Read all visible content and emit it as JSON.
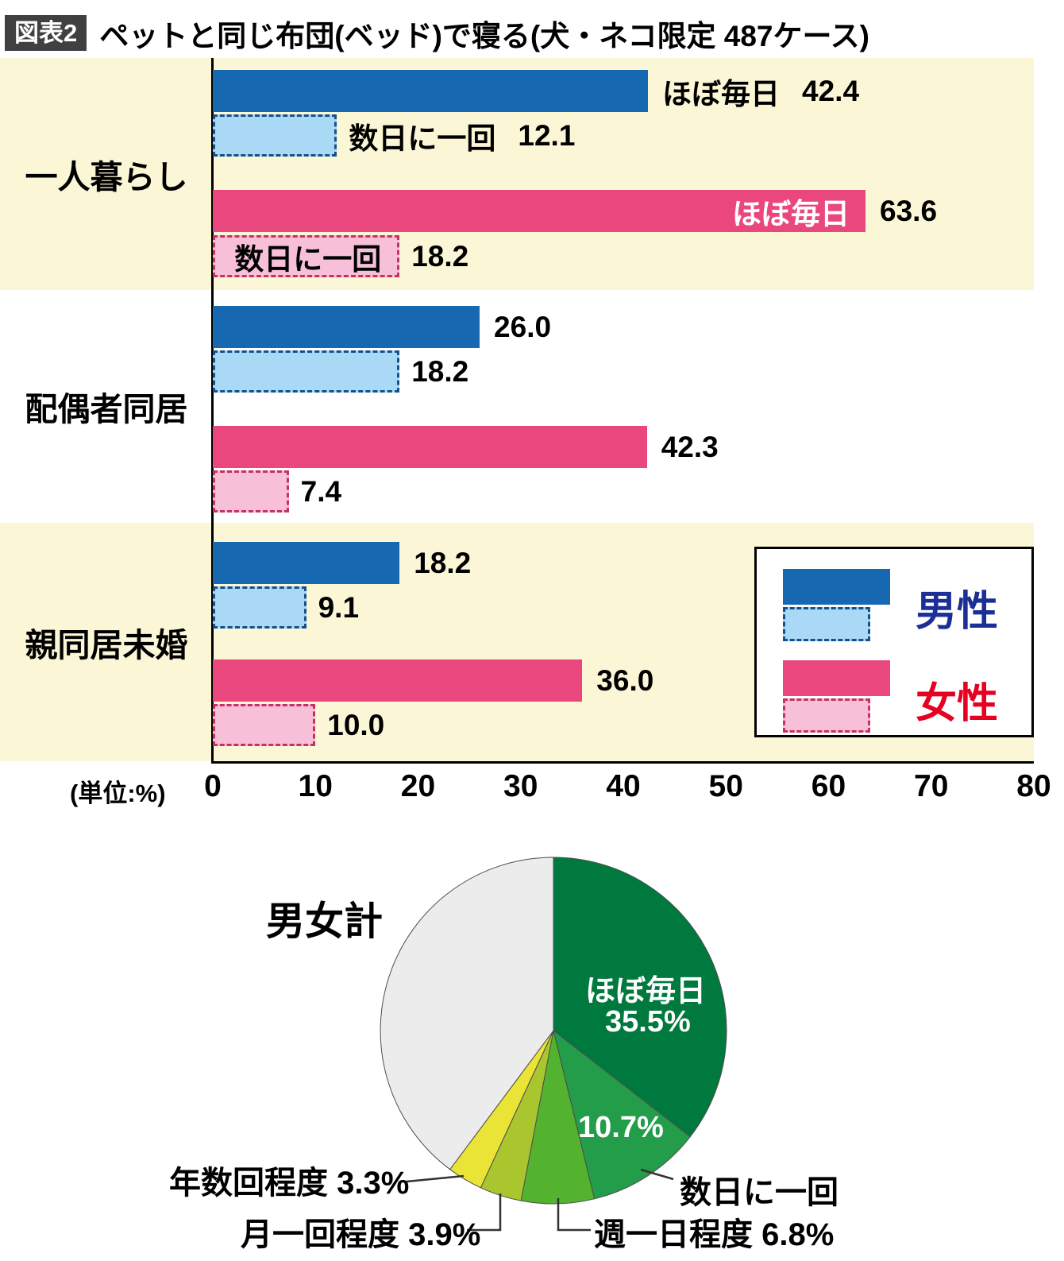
{
  "header": {
    "badge": "図表2",
    "title": "ペットと同じ布団(ベッド)で寝る(犬・ネコ限定 487ケース)"
  },
  "bar_section": {
    "unit_label": "(単位:%)"
  },
  "legend": {
    "male": "男性",
    "female": "女性"
  },
  "colors": {
    "badge_bg": "#404040",
    "male_solid": "#1668b0",
    "male_light": "#a9d9f4",
    "male_dash_border": "#14508c",
    "female_solid": "#e9477e",
    "female_light": "#f7c0d8",
    "female_dash_border": "#c73063",
    "band_cream": "#fbf6d6",
    "legend_male_text": "#1b2f96",
    "legend_female_text": "#e60021",
    "axis": "#000000"
  },
  "chart_data": [
    {
      "type": "bar",
      "orientation": "horizontal",
      "unit": "%",
      "xlim": [
        0,
        80
      ],
      "xticks": [
        0,
        10,
        20,
        30,
        40,
        50,
        60,
        70,
        80
      ],
      "series_legend": [
        {
          "name": "男性 ほぼ毎日",
          "style": "male-solid"
        },
        {
          "name": "男性 数日に一回",
          "style": "male-dashed"
        },
        {
          "name": "女性 ほぼ毎日",
          "style": "female-solid"
        },
        {
          "name": "女性 数日に一回",
          "style": "female-dashed"
        }
      ],
      "groups": [
        {
          "label": "一人暮らし",
          "bars": [
            {
              "series": "male-solid",
              "frequency": "ほぼ毎日",
              "value": 42.4,
              "value_label": "42.4",
              "text": "ほぼ毎日",
              "text_pos": "outside",
              "text_color": "#000000"
            },
            {
              "series": "male-dashed",
              "frequency": "数日に一回",
              "value": 12.1,
              "value_label": "12.1",
              "text": "数日に一回",
              "text_pos": "outside",
              "text_color": "#000000"
            },
            {
              "series": "female-solid",
              "frequency": "ほぼ毎日",
              "value": 63.6,
              "value_label": "63.6",
              "text": "ほぼ毎日",
              "text_pos": "inside",
              "text_color": "#ffffff"
            },
            {
              "series": "female-dashed",
              "frequency": "数日に一回",
              "value": 18.2,
              "value_label": "18.2",
              "text": "数日に一回",
              "text_pos": "inside",
              "text_color": "#000000"
            }
          ]
        },
        {
          "label": "配偶者同居",
          "bars": [
            {
              "series": "male-solid",
              "frequency": "ほぼ毎日",
              "value": 26.0,
              "value_label": "26.0"
            },
            {
              "series": "male-dashed",
              "frequency": "数日に一回",
              "value": 18.2,
              "value_label": "18.2"
            },
            {
              "series": "female-solid",
              "frequency": "ほぼ毎日",
              "value": 42.3,
              "value_label": "42.3"
            },
            {
              "series": "female-dashed",
              "frequency": "数日に一回",
              "value": 7.4,
              "value_label": "7.4"
            }
          ]
        },
        {
          "label": "親同居未婚",
          "bars": [
            {
              "series": "male-solid",
              "frequency": "ほぼ毎日",
              "value": 18.2,
              "value_label": "18.2"
            },
            {
              "series": "male-dashed",
              "frequency": "数日に一回",
              "value": 9.1,
              "value_label": "9.1"
            },
            {
              "series": "female-solid",
              "frequency": "ほぼ毎日",
              "value": 36.0,
              "value_label": "36.0"
            },
            {
              "series": "female-dashed",
              "frequency": "数日に一回",
              "value": 10.0,
              "value_label": "10.0"
            }
          ]
        }
      ]
    },
    {
      "type": "pie",
      "title": "男女計",
      "slices": [
        {
          "label": "ほぼ毎日",
          "value": 35.5,
          "color": "#00793e"
        },
        {
          "label": "数日に一回",
          "value": 10.7,
          "color": "#239d4a"
        },
        {
          "label": "週一日程度",
          "value": 6.8,
          "color": "#53b32f"
        },
        {
          "label": "月一回程度",
          "value": 3.9,
          "color": "#a9c62e"
        },
        {
          "label": "年数回程度",
          "value": 3.3,
          "color": "#e9e435"
        },
        {
          "label": "",
          "value": 39.8,
          "color": "#ececec"
        }
      ]
    }
  ]
}
